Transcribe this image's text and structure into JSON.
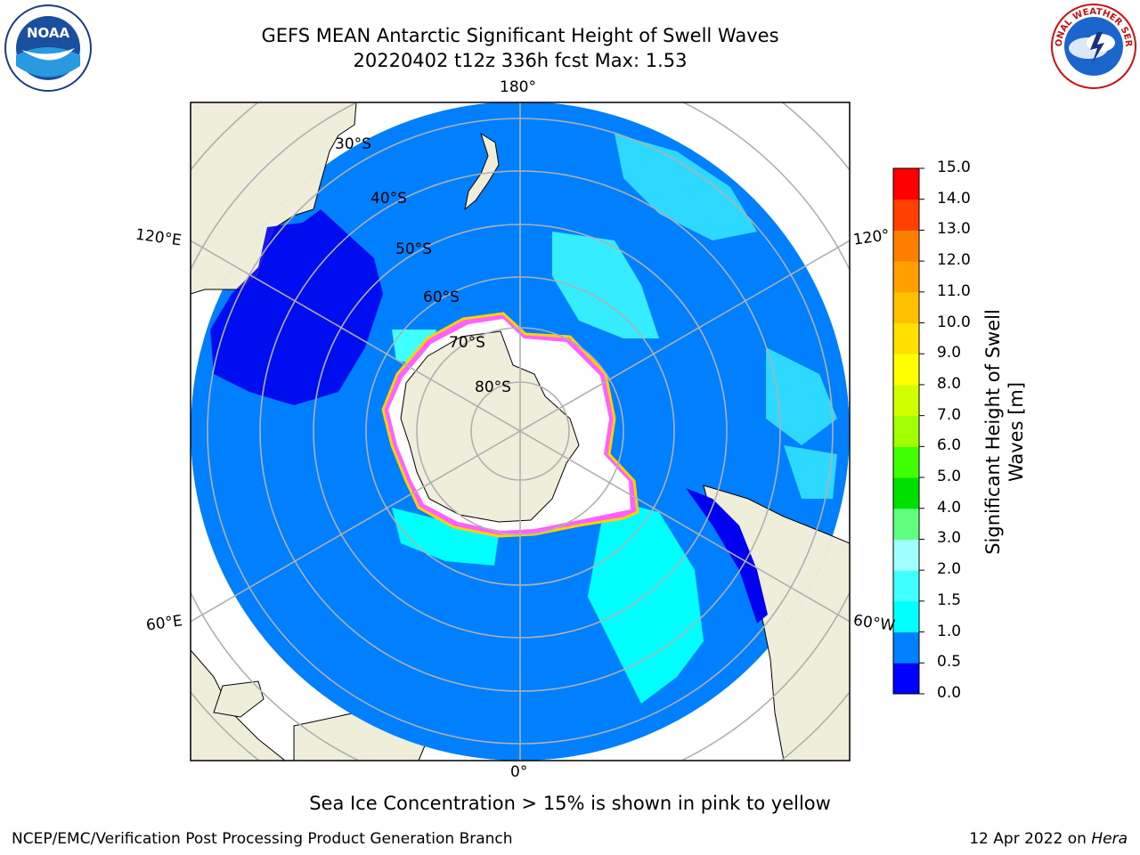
{
  "title_line1": "GEFS MEAN Antarctic Significant Height of Swell Waves",
  "title_line2": "20220402 t12z 336h fcst   Max: 1.53",
  "lon_labels": {
    "top": "180°",
    "bottom": "0°",
    "left_upper": "120°E",
    "left_lower": "60°E",
    "right_upper": "120°",
    "right_lower": "60°W"
  },
  "lat_labels": [
    "30°S",
    "40°S",
    "50°S",
    "60°S",
    "70°S",
    "80°S"
  ],
  "colorbar": {
    "title": "Significant Height of Swell Waves [m]",
    "title_line1": "Significant Height of Swell",
    "title_line2": "Waves [m]",
    "ticks": [
      "0.0",
      "0.5",
      "1.0",
      "1.5",
      "2.0",
      "3.0",
      "4.0",
      "5.0",
      "6.0",
      "7.0",
      "8.0",
      "9.0",
      "10.0",
      "11.0",
      "12.0",
      "13.0",
      "14.0",
      "15.0"
    ],
    "colors": [
      "#0000ff",
      "#0080ff",
      "#00ffff",
      "#40ffff",
      "#a0ffff",
      "#60ff80",
      "#00e000",
      "#40ff00",
      "#a0ff00",
      "#d0ff00",
      "#ffff00",
      "#ffe000",
      "#ffc000",
      "#ffa000",
      "#ff8000",
      "#ff4000",
      "#ff0000"
    ]
  },
  "colors": {
    "land": "#eeeedb",
    "ocean_base": "#0080ff",
    "ice": "#ffffff",
    "grid": "#b0b0b0"
  },
  "footer_note": "Sea Ice Concentration > 15% is shown in pink to yellow",
  "credit": "NCEP/EMC/Verification Post Processing Product Generation Branch",
  "date_text": "12 Apr 2022 on",
  "date_host": "Hera",
  "logos": {
    "left": "NOAA",
    "right": "NATIONAL WEATHER SERVICE"
  }
}
